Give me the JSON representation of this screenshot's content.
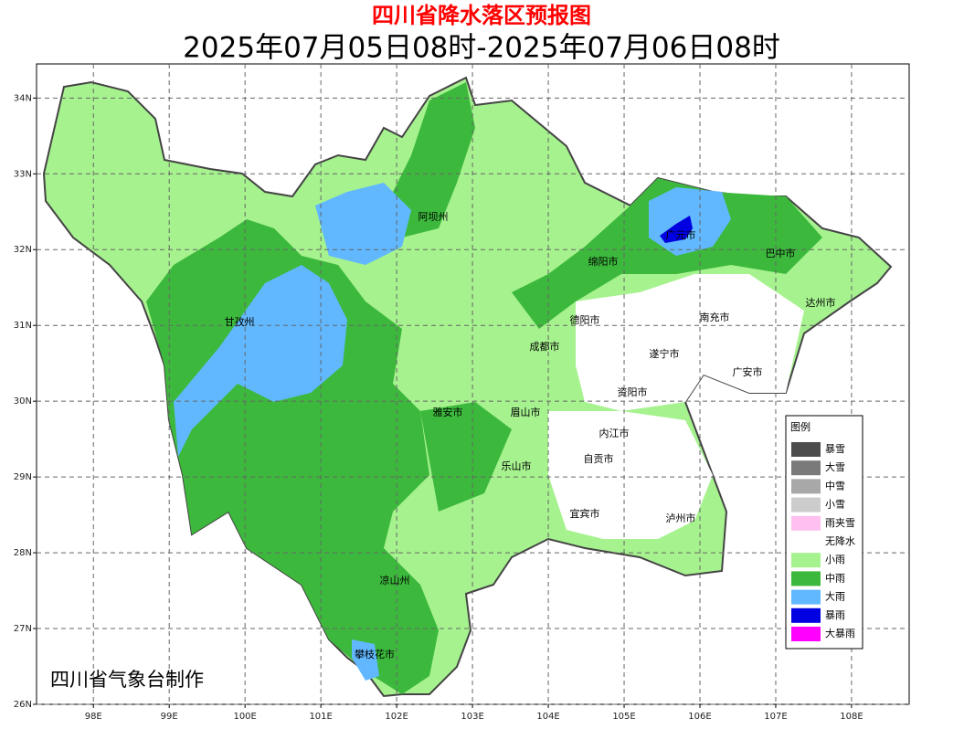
{
  "title": "四川省降水落区预报图",
  "subtitle": "2025年07月05日08时-2025年07月06日08时",
  "credit": "四川省气象台制作",
  "xlim": [
    97.25,
    108.76
  ],
  "ylim": [
    26,
    34.45
  ],
  "xticks": [
    {
      "value": 98,
      "label": "98E"
    },
    {
      "value": 99,
      "label": "99E"
    },
    {
      "value": 100,
      "label": "100E"
    },
    {
      "value": 101,
      "label": "101E"
    },
    {
      "value": 102,
      "label": "102E"
    },
    {
      "value": 103,
      "label": "103E"
    },
    {
      "value": 104,
      "label": "104E"
    },
    {
      "value": 105,
      "label": "105E"
    },
    {
      "value": 106,
      "label": "106E"
    },
    {
      "value": 107,
      "label": "107E"
    },
    {
      "value": 108,
      "label": "108E"
    }
  ],
  "yticks": [
    {
      "value": 26,
      "label": "26N"
    },
    {
      "value": 27,
      "label": "27N"
    },
    {
      "value": 28,
      "label": "28N"
    },
    {
      "value": 29,
      "label": "29N"
    },
    {
      "value": 30,
      "label": "30N"
    },
    {
      "value": 31,
      "label": "31N"
    },
    {
      "value": 32,
      "label": "32N"
    },
    {
      "value": 33,
      "label": "33N"
    },
    {
      "value": 34,
      "label": "34N"
    }
  ],
  "cities": [
    "阿坝州",
    "绵阳市",
    "广元市",
    "巴中市",
    "达州市",
    "甘孜州",
    "德阳市",
    "南充市",
    "成都市",
    "遂宁市",
    "广安市",
    "资阳市",
    "雅安市",
    "眉山市",
    "内江市",
    "自贡市",
    "乐山市",
    "宜宾市",
    "泸州市",
    "凉山州",
    "攀枝花市"
  ],
  "legend": {
    "title": "图例",
    "items": [
      {
        "name": "暴雪",
        "color": "#4d4d4d"
      },
      {
        "name": "大雪",
        "color": "#7a7a7a"
      },
      {
        "name": "中雪",
        "color": "#a8a8a8"
      },
      {
        "name": "小雪",
        "color": "#cccccc"
      },
      {
        "name": "雨夹雪",
        "color": "#ffc0f0"
      },
      {
        "name": "无降水",
        "color": "#ffffff"
      },
      {
        "name": "小雨",
        "color": "#a6f28f"
      },
      {
        "name": "中雨",
        "color": "#3cb93c"
      },
      {
        "name": "大雨",
        "color": "#61b8ff"
      },
      {
        "name": "暴雨",
        "color": "#0000e0"
      },
      {
        "name": "大暴雨",
        "color": "#ff00ff"
      }
    ]
  }
}
